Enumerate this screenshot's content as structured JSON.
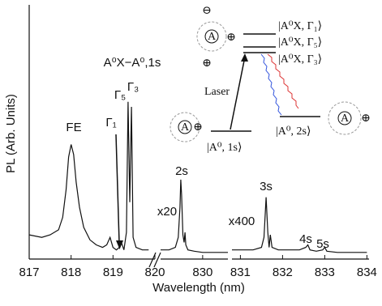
{
  "chart_data": {
    "type": "line",
    "xlabel": "Wavelength (nm)",
    "ylabel": "PL (Arb. Units)",
    "color": "#111111",
    "ylim": [
      0,
      100
    ],
    "segments": [
      {
        "xlim": [
          817,
          820
        ],
        "xticks": [
          817,
          818,
          819,
          820
        ],
        "x": [
          817.0,
          817.3,
          817.5,
          817.7,
          817.8,
          817.88,
          817.94,
          818.0,
          818.06,
          818.12,
          818.2,
          818.3,
          818.45,
          818.6,
          818.75,
          818.85,
          818.93,
          819.0,
          819.08,
          819.15,
          819.2,
          819.26,
          819.32,
          819.36,
          819.4,
          819.44,
          819.48,
          819.55,
          819.7,
          819.85
        ],
        "values": [
          9,
          8,
          9,
          11,
          16,
          27,
          40,
          45,
          41,
          30,
          20,
          12,
          7,
          5,
          4,
          5,
          8,
          4,
          3,
          4,
          6,
          3,
          10,
          62,
          22,
          60,
          8,
          4,
          3,
          3
        ]
      },
      {
        "xlim": [
          829,
          830.6
        ],
        "xticks": [
          830
        ],
        "x": [
          829.0,
          829.2,
          829.35,
          829.42,
          829.46,
          829.48,
          829.5,
          829.53,
          829.56,
          829.58,
          829.6,
          829.65,
          829.8,
          830.0,
          830.3,
          830.6
        ],
        "values": [
          3,
          3,
          4,
          8,
          20,
          31,
          25,
          9,
          6,
          10,
          5,
          3,
          2.5,
          2,
          2,
          2
        ]
      },
      {
        "xlim": [
          830.8,
          834.05
        ],
        "xticks": [
          831,
          832,
          833,
          834
        ],
        "x": [
          830.8,
          831.0,
          831.3,
          831.5,
          831.56,
          831.61,
          831.65,
          831.68,
          831.71,
          831.75,
          831.9,
          832.1,
          832.4,
          832.55,
          832.6,
          832.65,
          832.8,
          832.95,
          833.0,
          833.05,
          833.3,
          833.6,
          834.0
        ],
        "values": [
          3,
          3,
          3,
          4,
          8,
          24,
          10,
          4,
          9,
          4,
          3,
          3,
          3,
          4,
          5,
          3,
          2.5,
          3,
          4,
          2.5,
          2,
          2,
          2
        ]
      }
    ],
    "annotations": [
      "FE",
      "Γ₁",
      "Γ₅",
      "Γ₃",
      "A⁰X−A⁰,1s",
      "2s",
      "x20",
      "3s",
      "x400",
      "4s",
      "5s"
    ],
    "inset": {
      "levels": [
        "|A⁰X, Γ₁⟩",
        "|A⁰X, Γ₅⟩",
        "|A⁰X, Γ₃⟩",
        "|A⁰, 1s⟩",
        "|A⁰, 2s⟩"
      ],
      "laser": "Laser",
      "atom": "A",
      "plus": "⊕",
      "minus": "⊖"
    }
  }
}
